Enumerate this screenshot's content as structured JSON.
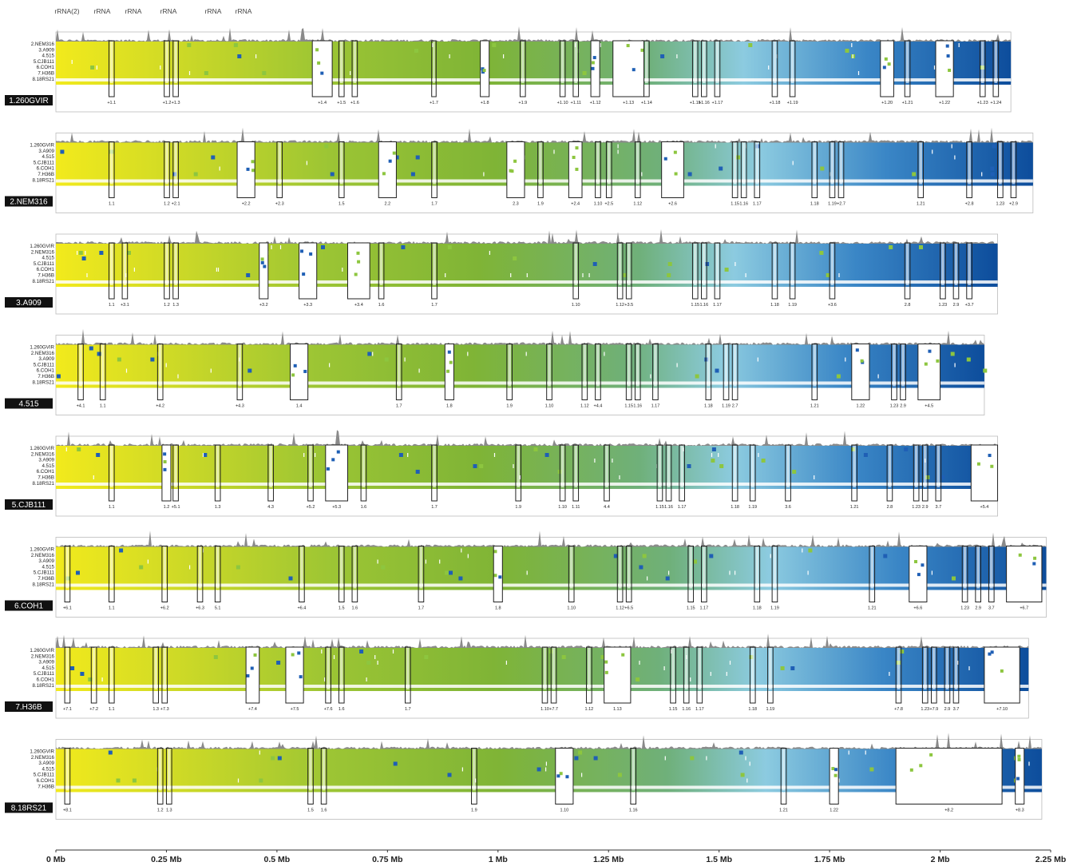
{
  "rrna_labels": [
    "rRNA(2)",
    "rRNA",
    "rRNA",
    "rRNA",
    "rRNA",
    "rRNA"
  ],
  "axis": {
    "ticks": [
      "0 Mb",
      "0.25 Mb",
      "0.5 Mb",
      "0.75 Mb",
      "1 Mb",
      "1.25 Mb",
      "1.5 Mb",
      "1.75 Mb",
      "2 Mb",
      "2.25 Mb"
    ],
    "min_mb": 0,
    "max_mb": 2.25
  },
  "colors": {
    "start": "#f2ea1c",
    "mid": "#7fb436",
    "light_blue": "#8ccbe0",
    "end": "#0d4d9c",
    "dark_blue": "#1a56a8",
    "coverage": "#8a8a8a",
    "box": "#222222",
    "label_bg": "#111111",
    "label_fg": "#ffffff"
  },
  "panels": [
    {
      "name": "1.260GVIR",
      "genome_mb": 2.16,
      "row_labels": [
        "2.NEM316",
        "3.A909",
        "4.515",
        "5.CJB111",
        "6.COH1",
        "7.H36B",
        "8.18RS21"
      ],
      "regions": [
        {
          "mb": 0.12,
          "w": 0.012,
          "label": "+1.1"
        },
        {
          "mb": 0.245,
          "w": 0.012,
          "label": "+1.2"
        },
        {
          "mb": 0.265,
          "w": 0.012,
          "label": "+1.3"
        },
        {
          "mb": 0.58,
          "w": 0.045,
          "label": "+1.4"
        },
        {
          "mb": 0.64,
          "w": 0.012,
          "label": "+1.5"
        },
        {
          "mb": 0.67,
          "w": 0.012,
          "label": "+1.6"
        },
        {
          "mb": 0.85,
          "w": 0.01,
          "label": "+1.7"
        },
        {
          "mb": 0.96,
          "w": 0.02,
          "label": "+1.8"
        },
        {
          "mb": 1.05,
          "w": 0.012,
          "label": "+1.9"
        },
        {
          "mb": 1.14,
          "w": 0.012,
          "label": "+1.10"
        },
        {
          "mb": 1.17,
          "w": 0.012,
          "label": "+1.11"
        },
        {
          "mb": 1.21,
          "w": 0.02,
          "label": "+1.12"
        },
        {
          "mb": 1.26,
          "w": 0.07,
          "label": "+1.13"
        },
        {
          "mb": 1.33,
          "w": 0.012,
          "label": "+1.14"
        },
        {
          "mb": 1.44,
          "w": 0.012,
          "label": "+1.15"
        },
        {
          "mb": 1.46,
          "w": 0.012,
          "label": "+1.16"
        },
        {
          "mb": 1.49,
          "w": 0.012,
          "label": "+1.17"
        },
        {
          "mb": 1.62,
          "w": 0.012,
          "label": "+1.18"
        },
        {
          "mb": 1.66,
          "w": 0.012,
          "label": "+1.19"
        },
        {
          "mb": 1.865,
          "w": 0.03,
          "label": "+1.20"
        },
        {
          "mb": 1.92,
          "w": 0.012,
          "label": "+1.21"
        },
        {
          "mb": 1.99,
          "w": 0.04,
          "label": "+1.22"
        },
        {
          "mb": 2.09,
          "w": 0.012,
          "label": "+1.23"
        },
        {
          "mb": 2.12,
          "w": 0.012,
          "label": "+1.24"
        }
      ]
    },
    {
      "name": "2.NEM316",
      "genome_mb": 2.21,
      "row_labels": [
        "1.260GVIR",
        "3.A909",
        "4.515",
        "5.CJB111",
        "6.COH1",
        "7.H36B",
        "8.18RS21"
      ],
      "regions": [
        {
          "mb": 0.12,
          "w": 0.012,
          "label": "1.1"
        },
        {
          "mb": 0.245,
          "w": 0.012,
          "label": "1.2"
        },
        {
          "mb": 0.265,
          "w": 0.012,
          "label": "+2.1"
        },
        {
          "mb": 0.41,
          "w": 0.04,
          "label": "+2.2"
        },
        {
          "mb": 0.5,
          "w": 0.012,
          "label": "+2.3"
        },
        {
          "mb": 0.64,
          "w": 0.012,
          "label": "1.5"
        },
        {
          "mb": 0.73,
          "w": 0.04,
          "label": "2.2"
        },
        {
          "mb": 0.85,
          "w": 0.012,
          "label": "1.7"
        },
        {
          "mb": 1.02,
          "w": 0.04,
          "label": "2.3"
        },
        {
          "mb": 1.09,
          "w": 0.012,
          "label": "1.9"
        },
        {
          "mb": 1.16,
          "w": 0.03,
          "label": "+2.4"
        },
        {
          "mb": 1.22,
          "w": 0.012,
          "label": "1.10"
        },
        {
          "mb": 1.245,
          "w": 0.012,
          "label": "+2.5"
        },
        {
          "mb": 1.31,
          "w": 0.012,
          "label": "1.12"
        },
        {
          "mb": 1.37,
          "w": 0.05,
          "label": "+2.6"
        },
        {
          "mb": 1.53,
          "w": 0.012,
          "label": "1.15"
        },
        {
          "mb": 1.55,
          "w": 0.012,
          "label": "1.16"
        },
        {
          "mb": 1.58,
          "w": 0.012,
          "label": "1.17"
        },
        {
          "mb": 1.71,
          "w": 0.012,
          "label": "1.18"
        },
        {
          "mb": 1.75,
          "w": 0.012,
          "label": "1.19"
        },
        {
          "mb": 1.77,
          "w": 0.012,
          "label": "+2.7"
        },
        {
          "mb": 1.95,
          "w": 0.012,
          "label": "1.21"
        },
        {
          "mb": 2.06,
          "w": 0.012,
          "label": "+2.8"
        },
        {
          "mb": 2.13,
          "w": 0.012,
          "label": "1.23"
        },
        {
          "mb": 2.16,
          "w": 0.012,
          "label": "+2.9"
        }
      ]
    },
    {
      "name": "3.A909",
      "genome_mb": 2.13,
      "row_labels": [
        "1.260GVIR",
        "2.NEM316",
        "4.515",
        "5.CJB111",
        "6.COH1",
        "7.H36B",
        "8.18RS21"
      ],
      "regions": [
        {
          "mb": 0.12,
          "w": 0.012,
          "label": "1.1"
        },
        {
          "mb": 0.15,
          "w": 0.012,
          "label": "+3.1"
        },
        {
          "mb": 0.245,
          "w": 0.012,
          "label": "1.2"
        },
        {
          "mb": 0.265,
          "w": 0.012,
          "label": "1.3"
        },
        {
          "mb": 0.46,
          "w": 0.02,
          "label": "+3.2"
        },
        {
          "mb": 0.55,
          "w": 0.04,
          "label": "+3.3"
        },
        {
          "mb": 0.66,
          "w": 0.05,
          "label": "+3.4"
        },
        {
          "mb": 0.73,
          "w": 0.012,
          "label": "1.6"
        },
        {
          "mb": 0.85,
          "w": 0.012,
          "label": "1.7"
        },
        {
          "mb": 1.17,
          "w": 0.012,
          "label": "1.10"
        },
        {
          "mb": 1.27,
          "w": 0.012,
          "label": "1.12"
        },
        {
          "mb": 1.29,
          "w": 0.012,
          "label": "+3.5"
        },
        {
          "mb": 1.44,
          "w": 0.012,
          "label": "1.15"
        },
        {
          "mb": 1.46,
          "w": 0.012,
          "label": "1.16"
        },
        {
          "mb": 1.49,
          "w": 0.012,
          "label": "1.17"
        },
        {
          "mb": 1.62,
          "w": 0.012,
          "label": "1.18"
        },
        {
          "mb": 1.66,
          "w": 0.012,
          "label": "1.19"
        },
        {
          "mb": 1.75,
          "w": 0.012,
          "label": "+3.6"
        },
        {
          "mb": 1.92,
          "w": 0.012,
          "label": "2.8"
        },
        {
          "mb": 2.0,
          "w": 0.012,
          "label": "1.23"
        },
        {
          "mb": 2.03,
          "w": 0.012,
          "label": "2.9"
        },
        {
          "mb": 2.06,
          "w": 0.012,
          "label": "+3.7"
        }
      ]
    },
    {
      "name": "4.515",
      "genome_mb": 2.1,
      "row_labels": [
        "1.260GVIR",
        "2.NEM316",
        "3.A909",
        "5.CJB111",
        "6.COH1",
        "7.H36B",
        "8.18RS21"
      ],
      "regions": [
        {
          "mb": 0.05,
          "w": 0.012,
          "label": "+4.1"
        },
        {
          "mb": 0.1,
          "w": 0.012,
          "label": "1.1"
        },
        {
          "mb": 0.23,
          "w": 0.012,
          "label": "+4.2"
        },
        {
          "mb": 0.41,
          "w": 0.012,
          "label": "+4.3"
        },
        {
          "mb": 0.53,
          "w": 0.04,
          "label": "1.4"
        },
        {
          "mb": 0.77,
          "w": 0.012,
          "label": "1.7"
        },
        {
          "mb": 0.88,
          "w": 0.02,
          "label": "1.8"
        },
        {
          "mb": 1.02,
          "w": 0.012,
          "label": "1.9"
        },
        {
          "mb": 1.11,
          "w": 0.012,
          "label": "1.10"
        },
        {
          "mb": 1.19,
          "w": 0.012,
          "label": "1.12"
        },
        {
          "mb": 1.22,
          "w": 0.012,
          "label": "+4.4"
        },
        {
          "mb": 1.29,
          "w": 0.012,
          "label": "1.15"
        },
        {
          "mb": 1.31,
          "w": 0.012,
          "label": "1.16"
        },
        {
          "mb": 1.35,
          "w": 0.012,
          "label": "1.17"
        },
        {
          "mb": 1.47,
          "w": 0.012,
          "label": "1.18"
        },
        {
          "mb": 1.51,
          "w": 0.012,
          "label": "1.19"
        },
        {
          "mb": 1.53,
          "w": 0.012,
          "label": "2.7"
        },
        {
          "mb": 1.71,
          "w": 0.012,
          "label": "1.21"
        },
        {
          "mb": 1.8,
          "w": 0.04,
          "label": "1.22"
        },
        {
          "mb": 1.89,
          "w": 0.012,
          "label": "1.23"
        },
        {
          "mb": 1.91,
          "w": 0.012,
          "label": "2.9"
        },
        {
          "mb": 1.95,
          "w": 0.05,
          "label": "+4.5"
        }
      ]
    },
    {
      "name": "5.CJB111",
      "genome_mb": 2.13,
      "row_labels": [
        "1.260GVIR",
        "2.NEM316",
        "3.A909",
        "4.515",
        "6.COH1",
        "7.H36B",
        "8.18RS21"
      ],
      "regions": [
        {
          "mb": 0.12,
          "w": 0.012,
          "label": "1.1"
        },
        {
          "mb": 0.24,
          "w": 0.02,
          "label": "1.2"
        },
        {
          "mb": 0.265,
          "w": 0.012,
          "label": "+5.1"
        },
        {
          "mb": 0.36,
          "w": 0.012,
          "label": "1.3"
        },
        {
          "mb": 0.48,
          "w": 0.012,
          "label": "4.3"
        },
        {
          "mb": 0.57,
          "w": 0.012,
          "label": "+5.2"
        },
        {
          "mb": 0.61,
          "w": 0.05,
          "label": "+5.3"
        },
        {
          "mb": 0.69,
          "w": 0.012,
          "label": "1.6"
        },
        {
          "mb": 0.85,
          "w": 0.012,
          "label": "1.7"
        },
        {
          "mb": 1.04,
          "w": 0.012,
          "label": "1.9"
        },
        {
          "mb": 1.14,
          "w": 0.012,
          "label": "1.10"
        },
        {
          "mb": 1.17,
          "w": 0.012,
          "label": "1.11"
        },
        {
          "mb": 1.24,
          "w": 0.012,
          "label": "4.4"
        },
        {
          "mb": 1.36,
          "w": 0.012,
          "label": "1.15"
        },
        {
          "mb": 1.38,
          "w": 0.012,
          "label": "1.16"
        },
        {
          "mb": 1.41,
          "w": 0.012,
          "label": "1.17"
        },
        {
          "mb": 1.53,
          "w": 0.012,
          "label": "1.18"
        },
        {
          "mb": 1.57,
          "w": 0.012,
          "label": "1.19"
        },
        {
          "mb": 1.65,
          "w": 0.012,
          "label": "3.6"
        },
        {
          "mb": 1.8,
          "w": 0.012,
          "label": "1.21"
        },
        {
          "mb": 1.88,
          "w": 0.012,
          "label": "2.8"
        },
        {
          "mb": 1.94,
          "w": 0.012,
          "label": "1.23"
        },
        {
          "mb": 1.96,
          "w": 0.012,
          "label": "2.9"
        },
        {
          "mb": 1.99,
          "w": 0.012,
          "label": "3.7"
        },
        {
          "mb": 2.07,
          "w": 0.06,
          "label": "+5.4"
        }
      ]
    },
    {
      "name": "6.COH1",
      "genome_mb": 2.24,
      "row_labels": [
        "1.260GVIR",
        "2.NEM316",
        "3.A909",
        "4.515",
        "5.CJB111",
        "7.H36B",
        "8.18RS21"
      ],
      "regions": [
        {
          "mb": 0.02,
          "w": 0.012,
          "label": "+6.1"
        },
        {
          "mb": 0.12,
          "w": 0.012,
          "label": "1.1"
        },
        {
          "mb": 0.24,
          "w": 0.012,
          "label": "+6.2"
        },
        {
          "mb": 0.32,
          "w": 0.012,
          "label": "+6.3"
        },
        {
          "mb": 0.36,
          "w": 0.012,
          "label": "5.1"
        },
        {
          "mb": 0.55,
          "w": 0.012,
          "label": "+6.4"
        },
        {
          "mb": 0.64,
          "w": 0.012,
          "label": "1.5"
        },
        {
          "mb": 0.67,
          "w": 0.012,
          "label": "1.6"
        },
        {
          "mb": 0.82,
          "w": 0.012,
          "label": "1.7"
        },
        {
          "mb": 0.99,
          "w": 0.02,
          "label": "1.8"
        },
        {
          "mb": 1.16,
          "w": 0.012,
          "label": "1.10"
        },
        {
          "mb": 1.27,
          "w": 0.012,
          "label": "1.12"
        },
        {
          "mb": 1.29,
          "w": 0.012,
          "label": "+6.5"
        },
        {
          "mb": 1.43,
          "w": 0.012,
          "label": "1.15"
        },
        {
          "mb": 1.46,
          "w": 0.012,
          "label": "1.17"
        },
        {
          "mb": 1.58,
          "w": 0.012,
          "label": "1.18"
        },
        {
          "mb": 1.62,
          "w": 0.012,
          "label": "1.19"
        },
        {
          "mb": 1.84,
          "w": 0.012,
          "label": "1.21"
        },
        {
          "mb": 1.93,
          "w": 0.04,
          "label": "+6.6"
        },
        {
          "mb": 2.05,
          "w": 0.012,
          "label": "1.23"
        },
        {
          "mb": 2.08,
          "w": 0.012,
          "label": "2.9"
        },
        {
          "mb": 2.11,
          "w": 0.012,
          "label": "3.7"
        },
        {
          "mb": 2.15,
          "w": 0.08,
          "label": "+6.7"
        }
      ]
    },
    {
      "name": "7.H36B",
      "genome_mb": 2.2,
      "row_labels": [
        "1.260GVIR",
        "2.NEM316",
        "3.A909",
        "4.515",
        "5.CJB111",
        "6.COH1",
        "8.18RS21"
      ],
      "regions": [
        {
          "mb": 0.02,
          "w": 0.012,
          "label": "+7.1"
        },
        {
          "mb": 0.08,
          "w": 0.012,
          "label": "+7.2"
        },
        {
          "mb": 0.12,
          "w": 0.012,
          "label": "1.1"
        },
        {
          "mb": 0.22,
          "w": 0.012,
          "label": "1.3"
        },
        {
          "mb": 0.24,
          "w": 0.012,
          "label": "+7.3"
        },
        {
          "mb": 0.43,
          "w": 0.03,
          "label": "+7.4"
        },
        {
          "mb": 0.52,
          "w": 0.04,
          "label": "+7.5"
        },
        {
          "mb": 0.61,
          "w": 0.012,
          "label": "+7.6"
        },
        {
          "mb": 0.64,
          "w": 0.012,
          "label": "1.6"
        },
        {
          "mb": 0.79,
          "w": 0.012,
          "label": "1.7"
        },
        {
          "mb": 1.1,
          "w": 0.012,
          "label": "1.10"
        },
        {
          "mb": 1.12,
          "w": 0.012,
          "label": "+7.7"
        },
        {
          "mb": 1.2,
          "w": 0.012,
          "label": "1.12"
        },
        {
          "mb": 1.24,
          "w": 0.06,
          "label": "1.13"
        },
        {
          "mb": 1.39,
          "w": 0.012,
          "label": "1.15"
        },
        {
          "mb": 1.42,
          "w": 0.012,
          "label": "1.16"
        },
        {
          "mb": 1.45,
          "w": 0.012,
          "label": "1.17"
        },
        {
          "mb": 1.57,
          "w": 0.012,
          "label": "1.18"
        },
        {
          "mb": 1.61,
          "w": 0.012,
          "label": "1.19"
        },
        {
          "mb": 1.9,
          "w": 0.012,
          "label": "+7.8"
        },
        {
          "mb": 1.96,
          "w": 0.012,
          "label": "1.23"
        },
        {
          "mb": 1.98,
          "w": 0.012,
          "label": "+7.9"
        },
        {
          "mb": 2.01,
          "w": 0.012,
          "label": "2.9"
        },
        {
          "mb": 2.03,
          "w": 0.012,
          "label": "3.7"
        },
        {
          "mb": 2.1,
          "w": 0.08,
          "label": "+7.10"
        }
      ]
    },
    {
      "name": "8.18RS21",
      "genome_mb": 2.23,
      "row_labels": [
        "1.260GVIR",
        "2.NEM316",
        "3.A909",
        "4.515",
        "5.CJB111",
        "6.COH1",
        "7.H36B"
      ],
      "regions": [
        {
          "mb": 0.02,
          "w": 0.012,
          "label": "+8.1"
        },
        {
          "mb": 0.23,
          "w": 0.012,
          "label": "1.2"
        },
        {
          "mb": 0.25,
          "w": 0.012,
          "label": "1.3"
        },
        {
          "mb": 0.57,
          "w": 0.012,
          "label": "1.5"
        },
        {
          "mb": 0.6,
          "w": 0.012,
          "label": "1.6"
        },
        {
          "mb": 0.94,
          "w": 0.012,
          "label": "1.9"
        },
        {
          "mb": 1.13,
          "w": 0.04,
          "label": "1.10"
        },
        {
          "mb": 1.3,
          "w": 0.012,
          "label": "1.16"
        },
        {
          "mb": 1.64,
          "w": 0.012,
          "label": "1.21"
        },
        {
          "mb": 1.75,
          "w": 0.02,
          "label": "1.22"
        },
        {
          "mb": 1.9,
          "w": 0.24,
          "label": "+8.2"
        },
        {
          "mb": 2.17,
          "w": 0.02,
          "label": "+8.3"
        }
      ]
    }
  ]
}
